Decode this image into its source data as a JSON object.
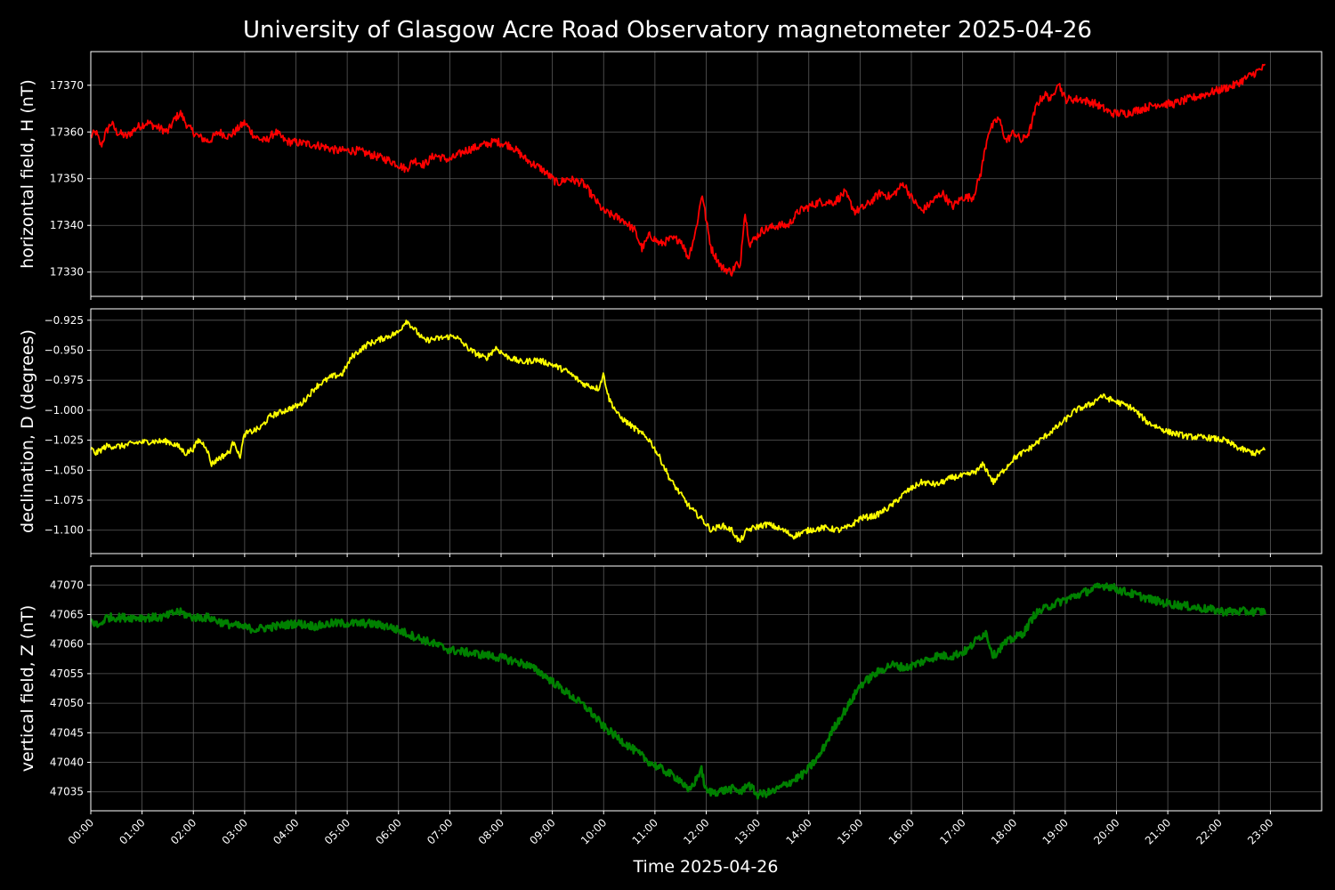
{
  "chart_data": {
    "title": "University of Glasgow Acre Road Observatory magnetometer 2025-04-26",
    "xlabel": "Time 2025-04-26",
    "x_ticks": [
      "00:00",
      "01:00",
      "02:00",
      "03:00",
      "04:00",
      "05:00",
      "06:00",
      "07:00",
      "08:00",
      "09:00",
      "10:00",
      "11:00",
      "12:00",
      "13:00",
      "14:00",
      "15:00",
      "16:00",
      "17:00",
      "18:00",
      "19:00",
      "20:00",
      "21:00",
      "22:00",
      "23:00"
    ],
    "xlim_hours": [
      0,
      24
    ],
    "grid": true,
    "panels": [
      {
        "type": "line",
        "ylabel": "horizontal field, H (nT)",
        "color": "#ff0000",
        "ylim": [
          17324.8,
          17377.2
        ],
        "yticks": [
          17330,
          17340,
          17350,
          17360,
          17370
        ],
        "tick_labels": [
          "17330",
          "17340",
          "17350",
          "17360",
          "17370"
        ],
        "noise": 0.9,
        "points": [
          [
            0,
            17359
          ],
          [
            0.1,
            17360
          ],
          [
            0.2,
            17357
          ],
          [
            0.3,
            17360
          ],
          [
            0.4,
            17362
          ],
          [
            0.5,
            17360
          ],
          [
            0.7,
            17359
          ],
          [
            0.9,
            17361
          ],
          [
            1.1,
            17362
          ],
          [
            1.3,
            17361
          ],
          [
            1.5,
            17360
          ],
          [
            1.65,
            17363
          ],
          [
            1.75,
            17364
          ],
          [
            1.9,
            17361
          ],
          [
            2.1,
            17359
          ],
          [
            2.3,
            17358
          ],
          [
            2.5,
            17360
          ],
          [
            2.7,
            17359
          ],
          [
            2.9,
            17361
          ],
          [
            3.0,
            17362
          ],
          [
            3.2,
            17359
          ],
          [
            3.4,
            17358
          ],
          [
            3.6,
            17360
          ],
          [
            3.8,
            17358
          ],
          [
            4.2,
            17357.5
          ],
          [
            4.5,
            17357
          ],
          [
            4.8,
            17356
          ],
          [
            5.2,
            17356
          ],
          [
            5.5,
            17355
          ],
          [
            5.8,
            17354
          ],
          [
            6.0,
            17353
          ],
          [
            6.15,
            17352
          ],
          [
            6.3,
            17354
          ],
          [
            6.5,
            17353
          ],
          [
            6.7,
            17355
          ],
          [
            7.0,
            17354
          ],
          [
            7.3,
            17356
          ],
          [
            7.6,
            17357
          ],
          [
            7.9,
            17358
          ],
          [
            8.2,
            17357
          ],
          [
            8.5,
            17354
          ],
          [
            8.8,
            17352
          ],
          [
            9.1,
            17349
          ],
          [
            9.3,
            17350
          ],
          [
            9.6,
            17349
          ],
          [
            9.8,
            17346
          ],
          [
            10.0,
            17343
          ],
          [
            10.2,
            17342
          ],
          [
            10.4,
            17341
          ],
          [
            10.6,
            17339
          ],
          [
            10.75,
            17335
          ],
          [
            10.9,
            17338
          ],
          [
            11.1,
            17336
          ],
          [
            11.3,
            17337
          ],
          [
            11.5,
            17337
          ],
          [
            11.65,
            17333
          ],
          [
            11.8,
            17339
          ],
          [
            11.92,
            17347
          ],
          [
            12.0,
            17341
          ],
          [
            12.1,
            17335
          ],
          [
            12.3,
            17331
          ],
          [
            12.5,
            17330
          ],
          [
            12.6,
            17332
          ],
          [
            12.65,
            17330
          ],
          [
            12.75,
            17343
          ],
          [
            12.85,
            17336
          ],
          [
            13.1,
            17339
          ],
          [
            13.4,
            17340
          ],
          [
            13.6,
            17340
          ],
          [
            13.8,
            17343
          ],
          [
            14.0,
            17344
          ],
          [
            14.2,
            17345
          ],
          [
            14.5,
            17345
          ],
          [
            14.7,
            17347
          ],
          [
            14.9,
            17343
          ],
          [
            15.1,
            17344
          ],
          [
            15.4,
            17347
          ],
          [
            15.6,
            17346
          ],
          [
            15.85,
            17349
          ],
          [
            16.0,
            17346
          ],
          [
            16.2,
            17343
          ],
          [
            16.4,
            17345
          ],
          [
            16.6,
            17347
          ],
          [
            16.8,
            17344
          ],
          [
            17.0,
            17346
          ],
          [
            17.2,
            17346
          ],
          [
            17.35,
            17351
          ],
          [
            17.5,
            17360
          ],
          [
            17.7,
            17363
          ],
          [
            17.85,
            17358
          ],
          [
            18.0,
            17360
          ],
          [
            18.15,
            17358
          ],
          [
            18.3,
            17360
          ],
          [
            18.45,
            17366
          ],
          [
            18.6,
            17368
          ],
          [
            18.75,
            17367
          ],
          [
            18.85,
            17371
          ],
          [
            19.0,
            17367
          ],
          [
            19.3,
            17367
          ],
          [
            19.6,
            17366
          ],
          [
            19.9,
            17364
          ],
          [
            20.2,
            17364
          ],
          [
            20.5,
            17365
          ],
          [
            20.8,
            17366
          ],
          [
            21.1,
            17366
          ],
          [
            21.4,
            17367
          ],
          [
            21.7,
            17368
          ],
          [
            22.0,
            17369
          ],
          [
            22.3,
            17370
          ],
          [
            22.6,
            17372
          ],
          [
            22.9,
            17374
          ]
        ]
      },
      {
        "type": "line",
        "ylabel": "declination, D (degrees)",
        "color": "#ffff00",
        "ylim": [
          -1.1195,
          -0.9155
        ],
        "yticks": [
          -1.1,
          -1.075,
          -1.05,
          -1.025,
          -1.0,
          -0.975,
          -0.95,
          -0.925
        ],
        "tick_labels": [
          "−1.100",
          "−1.075",
          "−1.050",
          "−1.025",
          "−1.000",
          "−0.975",
          "−0.950",
          "−0.925"
        ],
        "noise": 0.0025,
        "points": [
          [
            0,
            -1.032
          ],
          [
            0.1,
            -1.036
          ],
          [
            0.3,
            -1.03
          ],
          [
            0.6,
            -1.03
          ],
          [
            0.9,
            -1.027
          ],
          [
            1.2,
            -1.026
          ],
          [
            1.5,
            -1.026
          ],
          [
            1.7,
            -1.03
          ],
          [
            1.85,
            -1.036
          ],
          [
            2.0,
            -1.032
          ],
          [
            2.1,
            -1.025
          ],
          [
            2.25,
            -1.03
          ],
          [
            2.35,
            -1.045
          ],
          [
            2.5,
            -1.04
          ],
          [
            2.7,
            -1.035
          ],
          [
            2.8,
            -1.025
          ],
          [
            2.9,
            -1.04
          ],
          [
            3.0,
            -1.02
          ],
          [
            3.3,
            -1.015
          ],
          [
            3.5,
            -1.005
          ],
          [
            3.8,
            -1.0
          ],
          [
            4.1,
            -0.995
          ],
          [
            4.4,
            -0.98
          ],
          [
            4.7,
            -0.972
          ],
          [
            4.9,
            -0.97
          ],
          [
            5.1,
            -0.955
          ],
          [
            5.4,
            -0.945
          ],
          [
            5.7,
            -0.94
          ],
          [
            6.0,
            -0.935
          ],
          [
            6.15,
            -0.925
          ],
          [
            6.3,
            -0.932
          ],
          [
            6.5,
            -0.942
          ],
          [
            6.8,
            -0.94
          ],
          [
            7.1,
            -0.938
          ],
          [
            7.4,
            -0.95
          ],
          [
            7.7,
            -0.957
          ],
          [
            7.9,
            -0.948
          ],
          [
            8.1,
            -0.955
          ],
          [
            8.4,
            -0.96
          ],
          [
            8.7,
            -0.958
          ],
          [
            9.0,
            -0.962
          ],
          [
            9.3,
            -0.968
          ],
          [
            9.6,
            -0.978
          ],
          [
            9.9,
            -0.982
          ],
          [
            10.0,
            -0.97
          ],
          [
            10.1,
            -0.99
          ],
          [
            10.3,
            -1.005
          ],
          [
            10.6,
            -1.015
          ],
          [
            10.9,
            -1.025
          ],
          [
            11.1,
            -1.04
          ],
          [
            11.3,
            -1.058
          ],
          [
            11.5,
            -1.07
          ],
          [
            11.7,
            -1.082
          ],
          [
            11.9,
            -1.09
          ],
          [
            12.1,
            -1.1
          ],
          [
            12.3,
            -1.096
          ],
          [
            12.5,
            -1.1
          ],
          [
            12.65,
            -1.11
          ],
          [
            12.8,
            -1.1
          ],
          [
            13.0,
            -1.097
          ],
          [
            13.2,
            -1.095
          ],
          [
            13.5,
            -1.1
          ],
          [
            13.7,
            -1.105
          ],
          [
            14.0,
            -1.1
          ],
          [
            14.3,
            -1.098
          ],
          [
            14.6,
            -1.1
          ],
          [
            14.8,
            -1.097
          ],
          [
            15.0,
            -1.09
          ],
          [
            15.3,
            -1.088
          ],
          [
            15.6,
            -1.08
          ],
          [
            15.9,
            -1.068
          ],
          [
            16.2,
            -1.06
          ],
          [
            16.5,
            -1.062
          ],
          [
            16.8,
            -1.056
          ],
          [
            17.1,
            -1.054
          ],
          [
            17.3,
            -1.05
          ],
          [
            17.4,
            -1.045
          ],
          [
            17.6,
            -1.06
          ],
          [
            17.8,
            -1.05
          ],
          [
            18.0,
            -1.04
          ],
          [
            18.3,
            -1.032
          ],
          [
            18.6,
            -1.022
          ],
          [
            18.9,
            -1.012
          ],
          [
            19.2,
            -1.0
          ],
          [
            19.5,
            -0.995
          ],
          [
            19.7,
            -0.988
          ],
          [
            20.0,
            -0.993
          ],
          [
            20.3,
            -0.998
          ],
          [
            20.6,
            -1.01
          ],
          [
            21.0,
            -1.018
          ],
          [
            21.4,
            -1.022
          ],
          [
            21.8,
            -1.023
          ],
          [
            22.1,
            -1.025
          ],
          [
            22.4,
            -1.032
          ],
          [
            22.7,
            -1.036
          ],
          [
            22.9,
            -1.033
          ]
        ]
      },
      {
        "type": "line",
        "ylabel": "vertical field, Z (nT)",
        "color": "#008000",
        "ylim": [
          47031.8,
          47073.2
        ],
        "yticks": [
          47035,
          47040,
          47045,
          47050,
          47055,
          47060,
          47065,
          47070
        ],
        "tick_labels": [
          "47035",
          "47040",
          "47045",
          "47050",
          "47055",
          "47060",
          "47065",
          "47070"
        ],
        "noise": 0.7,
        "points": [
          [
            0,
            47064
          ],
          [
            0.15,
            47063
          ],
          [
            0.3,
            47064.5
          ],
          [
            0.6,
            47064.5
          ],
          [
            1.0,
            47064.5
          ],
          [
            1.4,
            47064.5
          ],
          [
            1.7,
            47065.5
          ],
          [
            2.0,
            47064.5
          ],
          [
            2.3,
            47064.5
          ],
          [
            2.6,
            47063.5
          ],
          [
            2.9,
            47063
          ],
          [
            3.2,
            47062.5
          ],
          [
            3.6,
            47063
          ],
          [
            4.0,
            47063.5
          ],
          [
            4.4,
            47063
          ],
          [
            4.7,
            47063.5
          ],
          [
            5.0,
            47063.5
          ],
          [
            5.4,
            47063.5
          ],
          [
            5.8,
            47063
          ],
          [
            6.1,
            47062
          ],
          [
            6.4,
            47061
          ],
          [
            6.7,
            47060
          ],
          [
            7.0,
            47059
          ],
          [
            7.4,
            47058.5
          ],
          [
            7.8,
            47058
          ],
          [
            8.1,
            47057.5
          ],
          [
            8.5,
            47056.5
          ],
          [
            8.8,
            47055
          ],
          [
            9.1,
            47053
          ],
          [
            9.4,
            47051
          ],
          [
            9.7,
            47049
          ],
          [
            10.0,
            47046
          ],
          [
            10.3,
            47044
          ],
          [
            10.6,
            47042
          ],
          [
            10.9,
            47040
          ],
          [
            11.2,
            47038.5
          ],
          [
            11.5,
            47037
          ],
          [
            11.65,
            47035
          ],
          [
            11.8,
            47037
          ],
          [
            11.9,
            47039
          ],
          [
            12.0,
            47035
          ],
          [
            12.2,
            47035
          ],
          [
            12.5,
            47035.5
          ],
          [
            12.7,
            47035
          ],
          [
            12.8,
            47036.5
          ],
          [
            13.0,
            47034.5
          ],
          [
            13.3,
            47035
          ],
          [
            13.6,
            47036.5
          ],
          [
            13.9,
            47038
          ],
          [
            14.2,
            47041
          ],
          [
            14.5,
            47046
          ],
          [
            14.8,
            47050
          ],
          [
            15.0,
            47053
          ],
          [
            15.3,
            47055
          ],
          [
            15.6,
            47056.5
          ],
          [
            15.9,
            47056
          ],
          [
            16.2,
            47057
          ],
          [
            16.5,
            47058
          ],
          [
            16.8,
            47058
          ],
          [
            17.1,
            47059
          ],
          [
            17.3,
            47061
          ],
          [
            17.45,
            47062
          ],
          [
            17.6,
            47058
          ],
          [
            17.8,
            47060
          ],
          [
            18.0,
            47061
          ],
          [
            18.2,
            47062
          ],
          [
            18.4,
            47065
          ],
          [
            18.7,
            47066.5
          ],
          [
            19.0,
            47067.5
          ],
          [
            19.3,
            47068.5
          ],
          [
            19.6,
            47069.5
          ],
          [
            19.8,
            47070
          ],
          [
            20.1,
            47069
          ],
          [
            20.5,
            47068
          ],
          [
            20.9,
            47067
          ],
          [
            21.3,
            47066.5
          ],
          [
            21.7,
            47066
          ],
          [
            22.1,
            47065.5
          ],
          [
            22.5,
            47065.5
          ],
          [
            22.9,
            47065.5
          ]
        ]
      }
    ]
  }
}
